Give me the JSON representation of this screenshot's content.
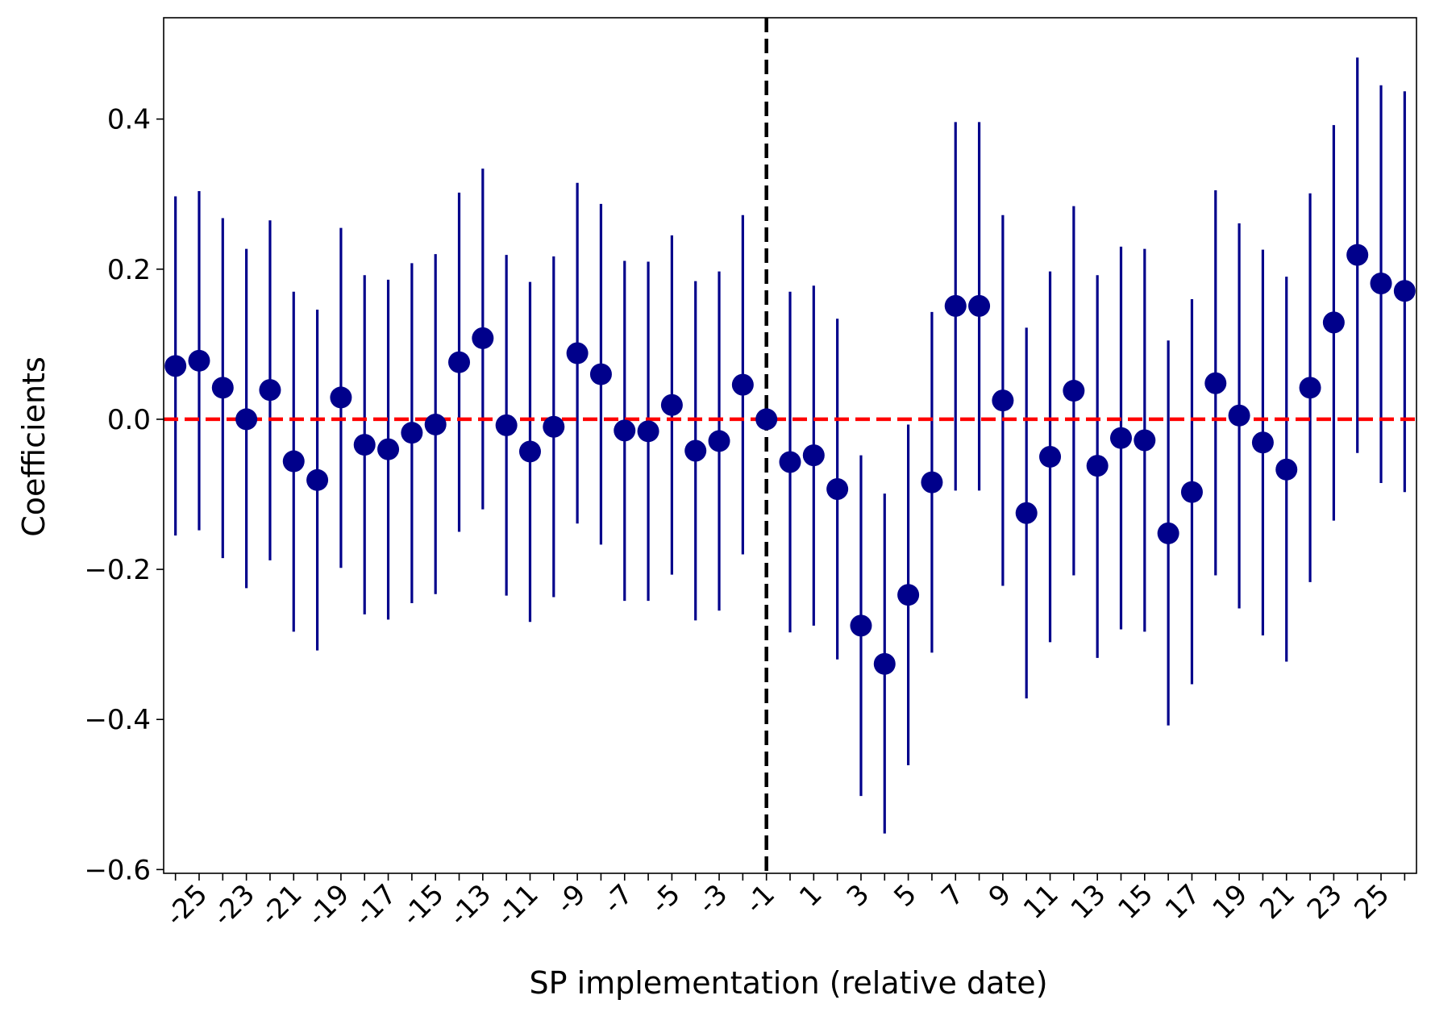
{
  "chart_data": {
    "type": "scatter",
    "xlabel": "SP implementation (relative date)",
    "ylabel": "Coefficients",
    "x_tick_labels": [
      "-25",
      "-23",
      "-21",
      "-19",
      "-17",
      "-15",
      "-13",
      "-11",
      "-9",
      "-7",
      "-5",
      "-3",
      "-1",
      "1",
      "3",
      "5",
      "7",
      "9",
      "11",
      "13",
      "15",
      "17",
      "19",
      "21",
      "23",
      "25"
    ],
    "y_tick_labels": [
      "0.4",
      "0.2",
      "0.0",
      "−0.2",
      "−0.4",
      "−0.6"
    ],
    "y_tick_values": [
      0.4,
      0.2,
      0.0,
      -0.2,
      -0.4,
      -0.6
    ],
    "ylim": [
      -0.605,
      0.535
    ],
    "reference_lines": {
      "horizontal_y": 0.0,
      "vertical_x": -1
    },
    "grid": false,
    "colors": {
      "points": "#00008B",
      "error_bars": "#00008B",
      "zero_line": "#FF0000",
      "event_line": "#000000"
    },
    "series": [
      {
        "x": [
          -26,
          -25,
          -24,
          -23,
          -22,
          -21,
          -20,
          -19,
          -18,
          -17,
          -16,
          -15,
          -14,
          -13,
          -12,
          -11,
          -10,
          -9,
          -8,
          -7,
          -6,
          -5,
          -4,
          -3,
          -2,
          -1,
          0,
          1,
          2,
          3,
          4,
          5,
          6,
          7,
          8,
          9,
          10,
          11,
          12,
          13,
          14,
          15,
          16,
          17,
          18,
          19,
          20,
          21,
          22,
          23,
          24,
          25,
          26
        ],
        "y": [
          0.071,
          0.078,
          0.042,
          0.0,
          0.039,
          -0.056,
          -0.081,
          0.029,
          -0.034,
          -0.04,
          -0.018,
          -0.007,
          0.076,
          0.108,
          -0.008,
          -0.043,
          -0.01,
          0.088,
          0.06,
          -0.015,
          -0.016,
          0.019,
          -0.042,
          -0.029,
          0.046,
          0.0,
          -0.057,
          -0.048,
          -0.093,
          -0.275,
          -0.326,
          -0.234,
          -0.084,
          0.151,
          0.151,
          0.025,
          -0.125,
          -0.05,
          0.038,
          -0.062,
          -0.025,
          -0.028,
          -0.152,
          -0.097,
          0.048,
          0.005,
          -0.031,
          -0.067,
          0.042,
          0.129,
          0.219,
          0.181,
          0.171
        ],
        "lower": [
          -0.155,
          -0.148,
          -0.185,
          -0.225,
          -0.188,
          -0.283,
          -0.308,
          -0.198,
          -0.26,
          -0.267,
          -0.245,
          -0.233,
          -0.15,
          -0.12,
          -0.235,
          -0.27,
          -0.237,
          -0.139,
          -0.167,
          -0.242,
          -0.242,
          -0.207,
          -0.268,
          -0.255,
          -0.18,
          0.0,
          -0.284,
          -0.275,
          -0.32,
          -0.502,
          -0.552,
          -0.461,
          -0.311,
          -0.095,
          -0.095,
          -0.222,
          -0.372,
          -0.297,
          -0.208,
          -0.318,
          -0.28,
          -0.283,
          -0.408,
          -0.353,
          -0.208,
          -0.252,
          -0.288,
          -0.323,
          -0.217,
          -0.135,
          -0.045,
          -0.085,
          -0.097
        ],
        "upper": [
          0.297,
          0.304,
          0.268,
          0.227,
          0.265,
          0.17,
          0.146,
          0.255,
          0.192,
          0.186,
          0.208,
          0.22,
          0.302,
          0.334,
          0.219,
          0.183,
          0.217,
          0.315,
          0.287,
          0.211,
          0.21,
          0.245,
          0.184,
          0.197,
          0.272,
          0.0,
          0.17,
          0.178,
          0.134,
          -0.048,
          -0.099,
          -0.007,
          0.143,
          0.396,
          0.396,
          0.272,
          0.122,
          0.197,
          0.284,
          0.192,
          0.23,
          0.227,
          0.105,
          0.16,
          0.305,
          0.261,
          0.226,
          0.19,
          0.301,
          0.392,
          0.482,
          0.445,
          0.437
        ]
      }
    ]
  }
}
